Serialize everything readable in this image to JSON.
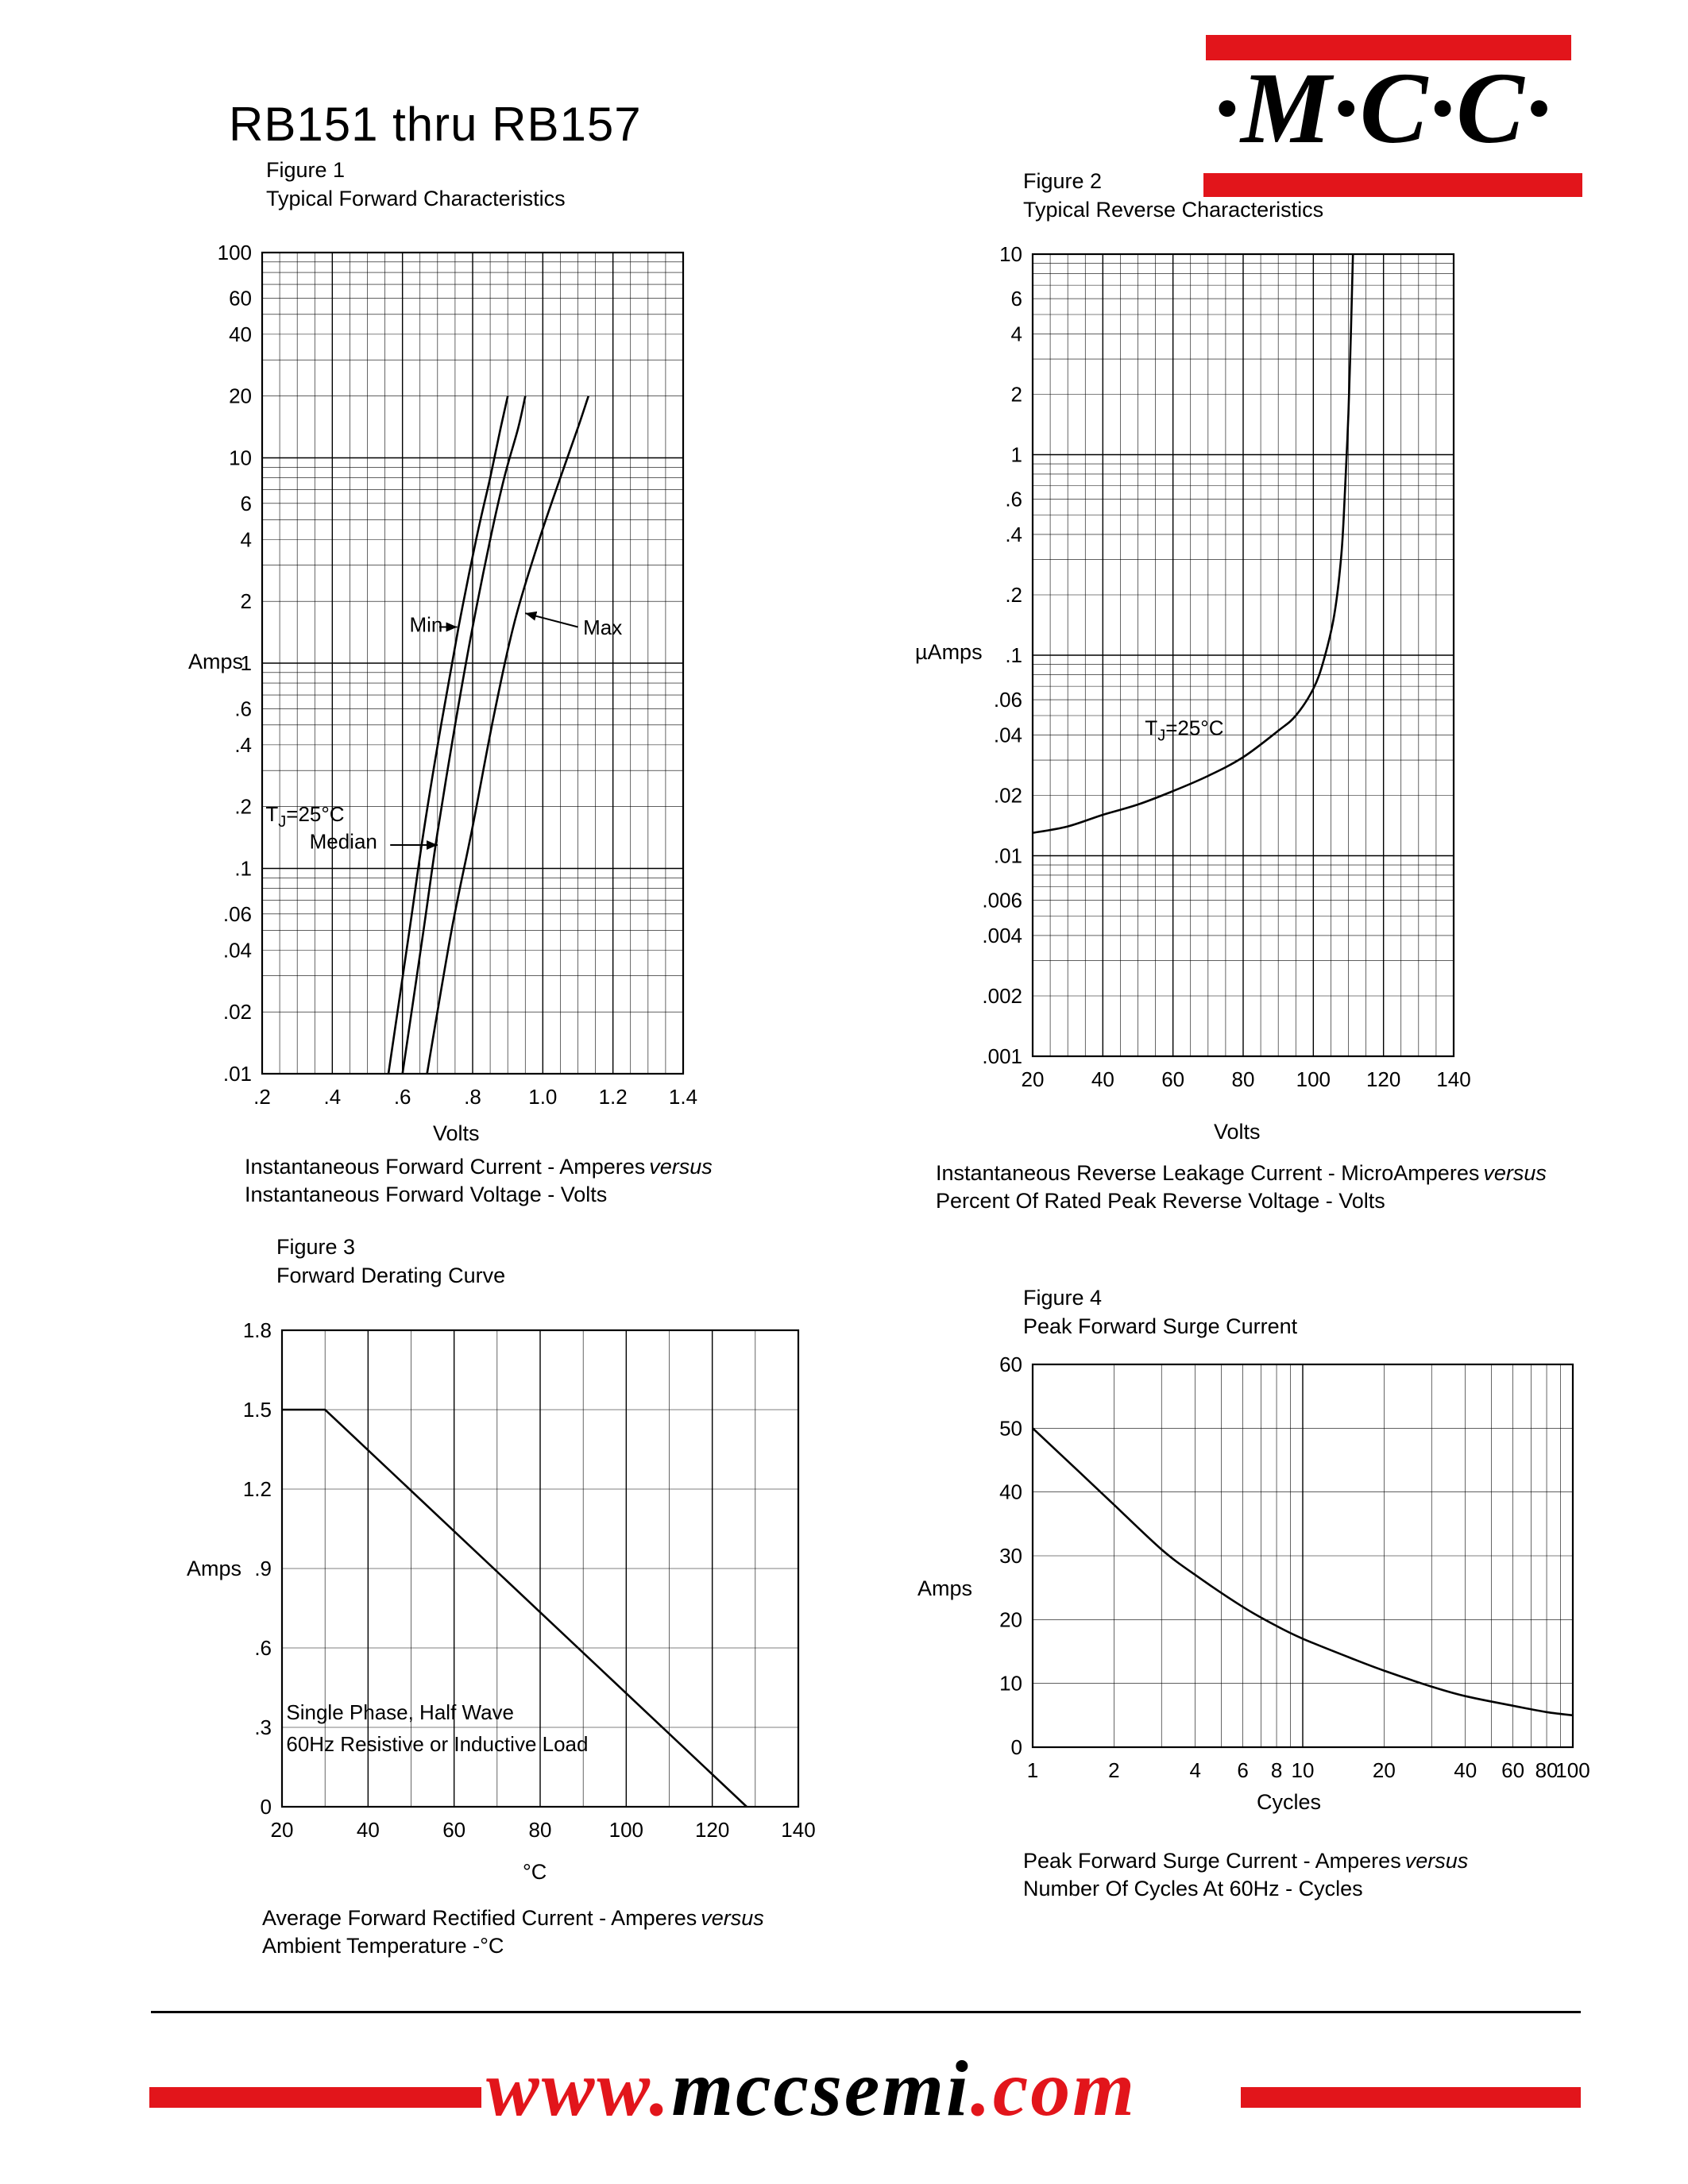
{
  "page": {
    "title": "RB151 thru RB157",
    "logo_text": "·M·C·C·",
    "footer_url": {
      "prefix": "www.",
      "mid": "mccsemi",
      "suffix": ".com"
    },
    "colors": {
      "accent_red": "#e2151b",
      "ink": "#000000"
    }
  },
  "chart_data": [
    {
      "type": "line",
      "figure_label": "Figure 1",
      "figure_title": "Typical Forward Characteristics",
      "xlabel": "Volts",
      "ylabel": "Amps",
      "x_axis": {
        "scale": "linear",
        "min": 0.2,
        "max": 1.4,
        "minor_step": 0.05,
        "major_step": 0.2,
        "ticks": [
          {
            "v": 0.2,
            "label": ".2"
          },
          {
            "v": 0.4,
            "label": ".4"
          },
          {
            "v": 0.6,
            "label": ".6"
          },
          {
            "v": 0.8,
            "label": ".8"
          },
          {
            "v": 1.0,
            "label": "1.0"
          },
          {
            "v": 1.2,
            "label": "1.2"
          },
          {
            "v": 1.4,
            "label": "1.4"
          }
        ]
      },
      "y_axis": {
        "scale": "log",
        "min": 0.01,
        "max": 100,
        "ticks": [
          {
            "v": 100,
            "label": "100"
          },
          {
            "v": 60,
            "label": "60"
          },
          {
            "v": 40,
            "label": "40"
          },
          {
            "v": 20,
            "label": "20"
          },
          {
            "v": 10,
            "label": "10"
          },
          {
            "v": 6,
            "label": "6"
          },
          {
            "v": 4,
            "label": "4"
          },
          {
            "v": 2,
            "label": "2"
          },
          {
            "v": 1,
            "label": "1"
          },
          {
            "v": 0.6,
            "label": ".6"
          },
          {
            "v": 0.4,
            "label": ".4"
          },
          {
            "v": 0.2,
            "label": ".2"
          },
          {
            "v": 0.1,
            "label": ".1"
          },
          {
            "v": 0.06,
            "label": ".06"
          },
          {
            "v": 0.04,
            "label": ".04"
          },
          {
            "v": 0.02,
            "label": ".02"
          },
          {
            "v": 0.01,
            "label": ".01"
          }
        ]
      },
      "series": [
        {
          "name": "Min",
          "smooth": true,
          "points": [
            [
              0.56,
              0.01
            ],
            [
              0.62,
              0.05
            ],
            [
              0.66,
              0.15
            ],
            [
              0.71,
              0.5
            ],
            [
              0.76,
              1.5
            ],
            [
              0.81,
              4
            ],
            [
              0.85,
              8
            ],
            [
              0.88,
              14
            ],
            [
              0.9,
              20
            ]
          ]
        },
        {
          "name": "Median",
          "smooth": true,
          "points": [
            [
              0.6,
              0.01
            ],
            [
              0.66,
              0.05
            ],
            [
              0.7,
              0.15
            ],
            [
              0.75,
              0.5
            ],
            [
              0.8,
              1.5
            ],
            [
              0.85,
              4
            ],
            [
              0.89,
              8
            ],
            [
              0.93,
              14
            ],
            [
              0.95,
              20
            ]
          ]
        },
        {
          "name": "Max",
          "smooth": true,
          "points": [
            [
              0.67,
              0.01
            ],
            [
              0.74,
              0.05
            ],
            [
              0.8,
              0.16
            ],
            [
              0.86,
              0.55
            ],
            [
              0.92,
              1.6
            ],
            [
              0.99,
              4
            ],
            [
              1.05,
              8
            ],
            [
              1.1,
              14
            ],
            [
              1.13,
              20
            ]
          ]
        }
      ],
      "annotations": [
        {
          "segments": [
            {
              "t": "Min"
            }
          ],
          "x": 0.62,
          "y": 1.42,
          "arrow_from": {
            "x": 0.705,
            "y": 1.5
          },
          "arrow_to": {
            "x": 0.756,
            "y": 1.5
          }
        },
        {
          "segments": [
            {
              "t": "Max"
            }
          ],
          "x": 1.115,
          "y": 1.38,
          "arrow_from": {
            "x": 1.1,
            "y": 1.5
          },
          "arrow_to": {
            "x": 0.95,
            "y": 1.75
          }
        },
        {
          "segments": [
            {
              "t": "Median"
            }
          ],
          "x": 0.335,
          "y": 0.125,
          "arrow_from": {
            "x": 0.565,
            "y": 0.13
          },
          "arrow_to": {
            "x": 0.7,
            "y": 0.13
          }
        },
        {
          "segments": [
            {
              "t": "T"
            },
            {
              "t": "J",
              "sub": true
            },
            {
              "t": "=25°C"
            }
          ],
          "x": 0.21,
          "y": 0.17
        }
      ],
      "caption": {
        "line1": "Instantaneous Forward Current - Amperes",
        "versus": "versus",
        "line2": "Instantaneous Forward Voltage - Volts"
      }
    },
    {
      "type": "line",
      "figure_label": "Figure 2",
      "figure_title": "Typical Reverse Characteristics",
      "xlabel": "Volts",
      "ylabel": "µAmps",
      "x_axis": {
        "scale": "linear",
        "min": 20,
        "max": 140,
        "minor_step": 5,
        "major_step": 20,
        "ticks": [
          {
            "v": 20,
            "label": "20"
          },
          {
            "v": 40,
            "label": "40"
          },
          {
            "v": 60,
            "label": "60"
          },
          {
            "v": 80,
            "label": "80"
          },
          {
            "v": 100,
            "label": "100"
          },
          {
            "v": 120,
            "label": "120"
          },
          {
            "v": 140,
            "label": "140"
          }
        ]
      },
      "y_axis": {
        "scale": "log",
        "min": 0.001,
        "max": 10,
        "ticks": [
          {
            "v": 10,
            "label": "10"
          },
          {
            "v": 6,
            "label": "6"
          },
          {
            "v": 4,
            "label": "4"
          },
          {
            "v": 2,
            "label": "2"
          },
          {
            "v": 1,
            "label": "1"
          },
          {
            "v": 0.6,
            "label": ".6"
          },
          {
            "v": 0.4,
            "label": ".4"
          },
          {
            "v": 0.2,
            "label": ".2"
          },
          {
            "v": 0.1,
            "label": ".1"
          },
          {
            "v": 0.06,
            "label": ".06"
          },
          {
            "v": 0.04,
            "label": ".04"
          },
          {
            "v": 0.02,
            "label": ".02"
          },
          {
            "v": 0.01,
            "label": ".01"
          },
          {
            "v": 0.006,
            "label": ".006"
          },
          {
            "v": 0.004,
            "label": ".004"
          },
          {
            "v": 0.002,
            "label": ".002"
          },
          {
            "v": 0.001,
            "label": ".001"
          }
        ]
      },
      "series": [
        {
          "name": "Reverse leakage",
          "smooth": true,
          "points": [
            [
              20,
              0.013
            ],
            [
              30,
              0.014
            ],
            [
              40,
              0.016
            ],
            [
              50,
              0.018
            ],
            [
              60,
              0.021
            ],
            [
              70,
              0.025
            ],
            [
              80,
              0.031
            ],
            [
              90,
              0.042
            ],
            [
              95,
              0.05
            ],
            [
              100,
              0.068
            ],
            [
              103,
              0.095
            ],
            [
              106,
              0.16
            ],
            [
              108,
              0.32
            ],
            [
              109,
              0.65
            ],
            [
              110,
              1.6
            ],
            [
              110.7,
              4
            ],
            [
              111.3,
              10
            ]
          ]
        }
      ],
      "annotations": [
        {
          "segments": [
            {
              "t": "T"
            },
            {
              "t": "J",
              "sub": true
            },
            {
              "t": "=25°C"
            }
          ],
          "x": 52,
          "y": 0.04
        }
      ],
      "caption": {
        "line1": "Instantaneous Reverse Leakage Current - MicroAmperes",
        "versus": "versus",
        "line2": "Percent Of Rated Peak Reverse Voltage - Volts"
      }
    },
    {
      "type": "line",
      "figure_label": "Figure 3",
      "figure_title": "Forward Derating Curve",
      "xlabel": "°C",
      "ylabel": "Amps",
      "x_axis": {
        "scale": "linear",
        "min": 20,
        "max": 140,
        "minor_step": 10,
        "major_step": 20,
        "ticks": [
          {
            "v": 20,
            "label": "20"
          },
          {
            "v": 40,
            "label": "40"
          },
          {
            "v": 60,
            "label": "60"
          },
          {
            "v": 80,
            "label": "80"
          },
          {
            "v": 100,
            "label": "100"
          },
          {
            "v": 120,
            "label": "120"
          },
          {
            "v": 140,
            "label": "140"
          }
        ]
      },
      "y_axis": {
        "scale": "linear",
        "min": 0,
        "max": 1.8,
        "minor_step": 0.3,
        "ticks": [
          {
            "v": 1.8,
            "label": "1.8"
          },
          {
            "v": 1.5,
            "label": "1.5"
          },
          {
            "v": 1.2,
            "label": "1.2"
          },
          {
            "v": 0.9,
            "label": ".9"
          },
          {
            "v": 0.6,
            "label": ".6"
          },
          {
            "v": 0.3,
            "label": ".3"
          },
          {
            "v": 0,
            "label": "0"
          }
        ]
      },
      "series": [
        {
          "name": "Derating",
          "smooth": false,
          "points": [
            [
              20,
              1.5
            ],
            [
              30,
              1.5
            ],
            [
              128,
              0
            ]
          ]
        }
      ],
      "annotations": [
        {
          "segments": [
            {
              "t": "Single Phase, Half Wave"
            }
          ],
          "x": 21,
          "y": 0.33
        },
        {
          "segments": [
            {
              "t": "60Hz Resistive or Inductive Load"
            }
          ],
          "x": 21,
          "y": 0.21
        }
      ],
      "caption": {
        "line1": "Average Forward Rectified Current  -  Amperes",
        "versus": "versus",
        "line2": "Ambient Temperature  -°C"
      }
    },
    {
      "type": "line",
      "figure_label": "Figure 4",
      "figure_title": "Peak Forward Surge Current",
      "xlabel": "Cycles",
      "ylabel": "Amps",
      "x_axis": {
        "scale": "log",
        "min": 1,
        "max": 100,
        "ticks": [
          {
            "v": 1,
            "label": "1"
          },
          {
            "v": 2,
            "label": "2"
          },
          {
            "v": 4,
            "label": "4"
          },
          {
            "v": 6,
            "label": "6"
          },
          {
            "v": 8,
            "label": "8"
          },
          {
            "v": 10,
            "label": "10"
          },
          {
            "v": 20,
            "label": "20"
          },
          {
            "v": 40,
            "label": "40"
          },
          {
            "v": 60,
            "label": "60"
          },
          {
            "v": 80,
            "label": "80"
          },
          {
            "v": 100,
            "label": "100"
          }
        ]
      },
      "y_axis": {
        "scale": "linear",
        "min": 0,
        "max": 60,
        "minor_step": 10,
        "ticks": [
          {
            "v": 60,
            "label": "60"
          },
          {
            "v": 50,
            "label": "50"
          },
          {
            "v": 40,
            "label": "40"
          },
          {
            "v": 30,
            "label": "30"
          },
          {
            "v": 20,
            "label": "20"
          },
          {
            "v": 10,
            "label": "10"
          },
          {
            "v": 0,
            "label": "0"
          }
        ]
      },
      "series": [
        {
          "name": "Surge",
          "smooth": true,
          "points": [
            [
              1,
              50
            ],
            [
              1.5,
              43
            ],
            [
              2,
              38
            ],
            [
              3,
              31
            ],
            [
              4,
              27
            ],
            [
              6,
              22
            ],
            [
              8,
              19
            ],
            [
              10,
              17
            ],
            [
              15,
              14
            ],
            [
              20,
              12
            ],
            [
              30,
              9.5
            ],
            [
              40,
              8
            ],
            [
              60,
              6.5
            ],
            [
              80,
              5.5
            ],
            [
              100,
              5
            ]
          ]
        }
      ],
      "annotations": [],
      "caption": {
        "line1": "Peak Forward Surge Current - Amperes",
        "versus": "versus",
        "line2": "Number Of Cycles At 60Hz - Cycles"
      }
    }
  ]
}
